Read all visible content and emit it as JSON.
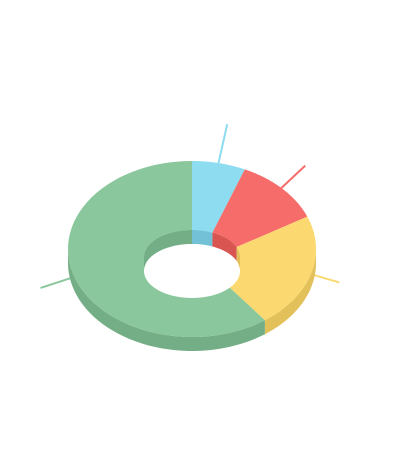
{
  "chart_data": {
    "type": "pie",
    "variant": "3d-donut",
    "title": "",
    "slices": [
      {
        "value": 7,
        "color": "#8ddcf0",
        "side_color": "#72c1d6"
      },
      {
        "value": 12,
        "color": "#f66c6a",
        "side_color": "#d85551"
      },
      {
        "value": 21,
        "color": "#fcd970",
        "side_color": "#e2c05a"
      },
      {
        "value": 60,
        "color": "#8bc79d",
        "side_color": "#73ae86"
      }
    ],
    "legend": "none",
    "data_labels": "none",
    "leader_lines": true
  }
}
